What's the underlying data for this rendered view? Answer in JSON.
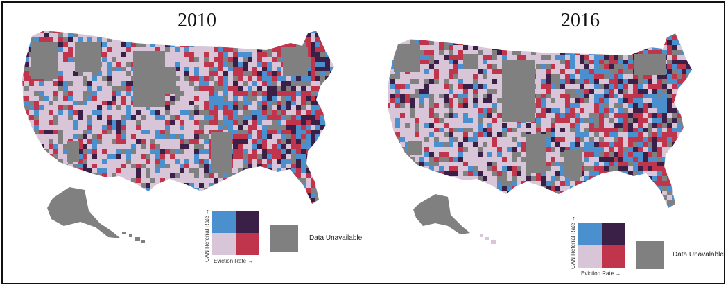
{
  "maps": [
    {
      "year": "2010",
      "legend": {
        "y_label": "CAN Referral Rate →",
        "x_label": "Eviction Rate →",
        "unavailable_label": "Data Unavailable"
      }
    },
    {
      "year": "2016",
      "legend": {
        "y_label": "CAN Referral Rate →",
        "x_label": "Eviction Rate →",
        "unavailable_label": "Data Unavalable"
      }
    }
  ],
  "colors": {
    "low_low": "#d8c6d8",
    "high_referral_low_eviction": "#4a90cf",
    "low_referral_high_eviction": "#c0344c",
    "high_high": "#3a1f47",
    "unavailable": "#808080",
    "border": "#111111"
  }
}
